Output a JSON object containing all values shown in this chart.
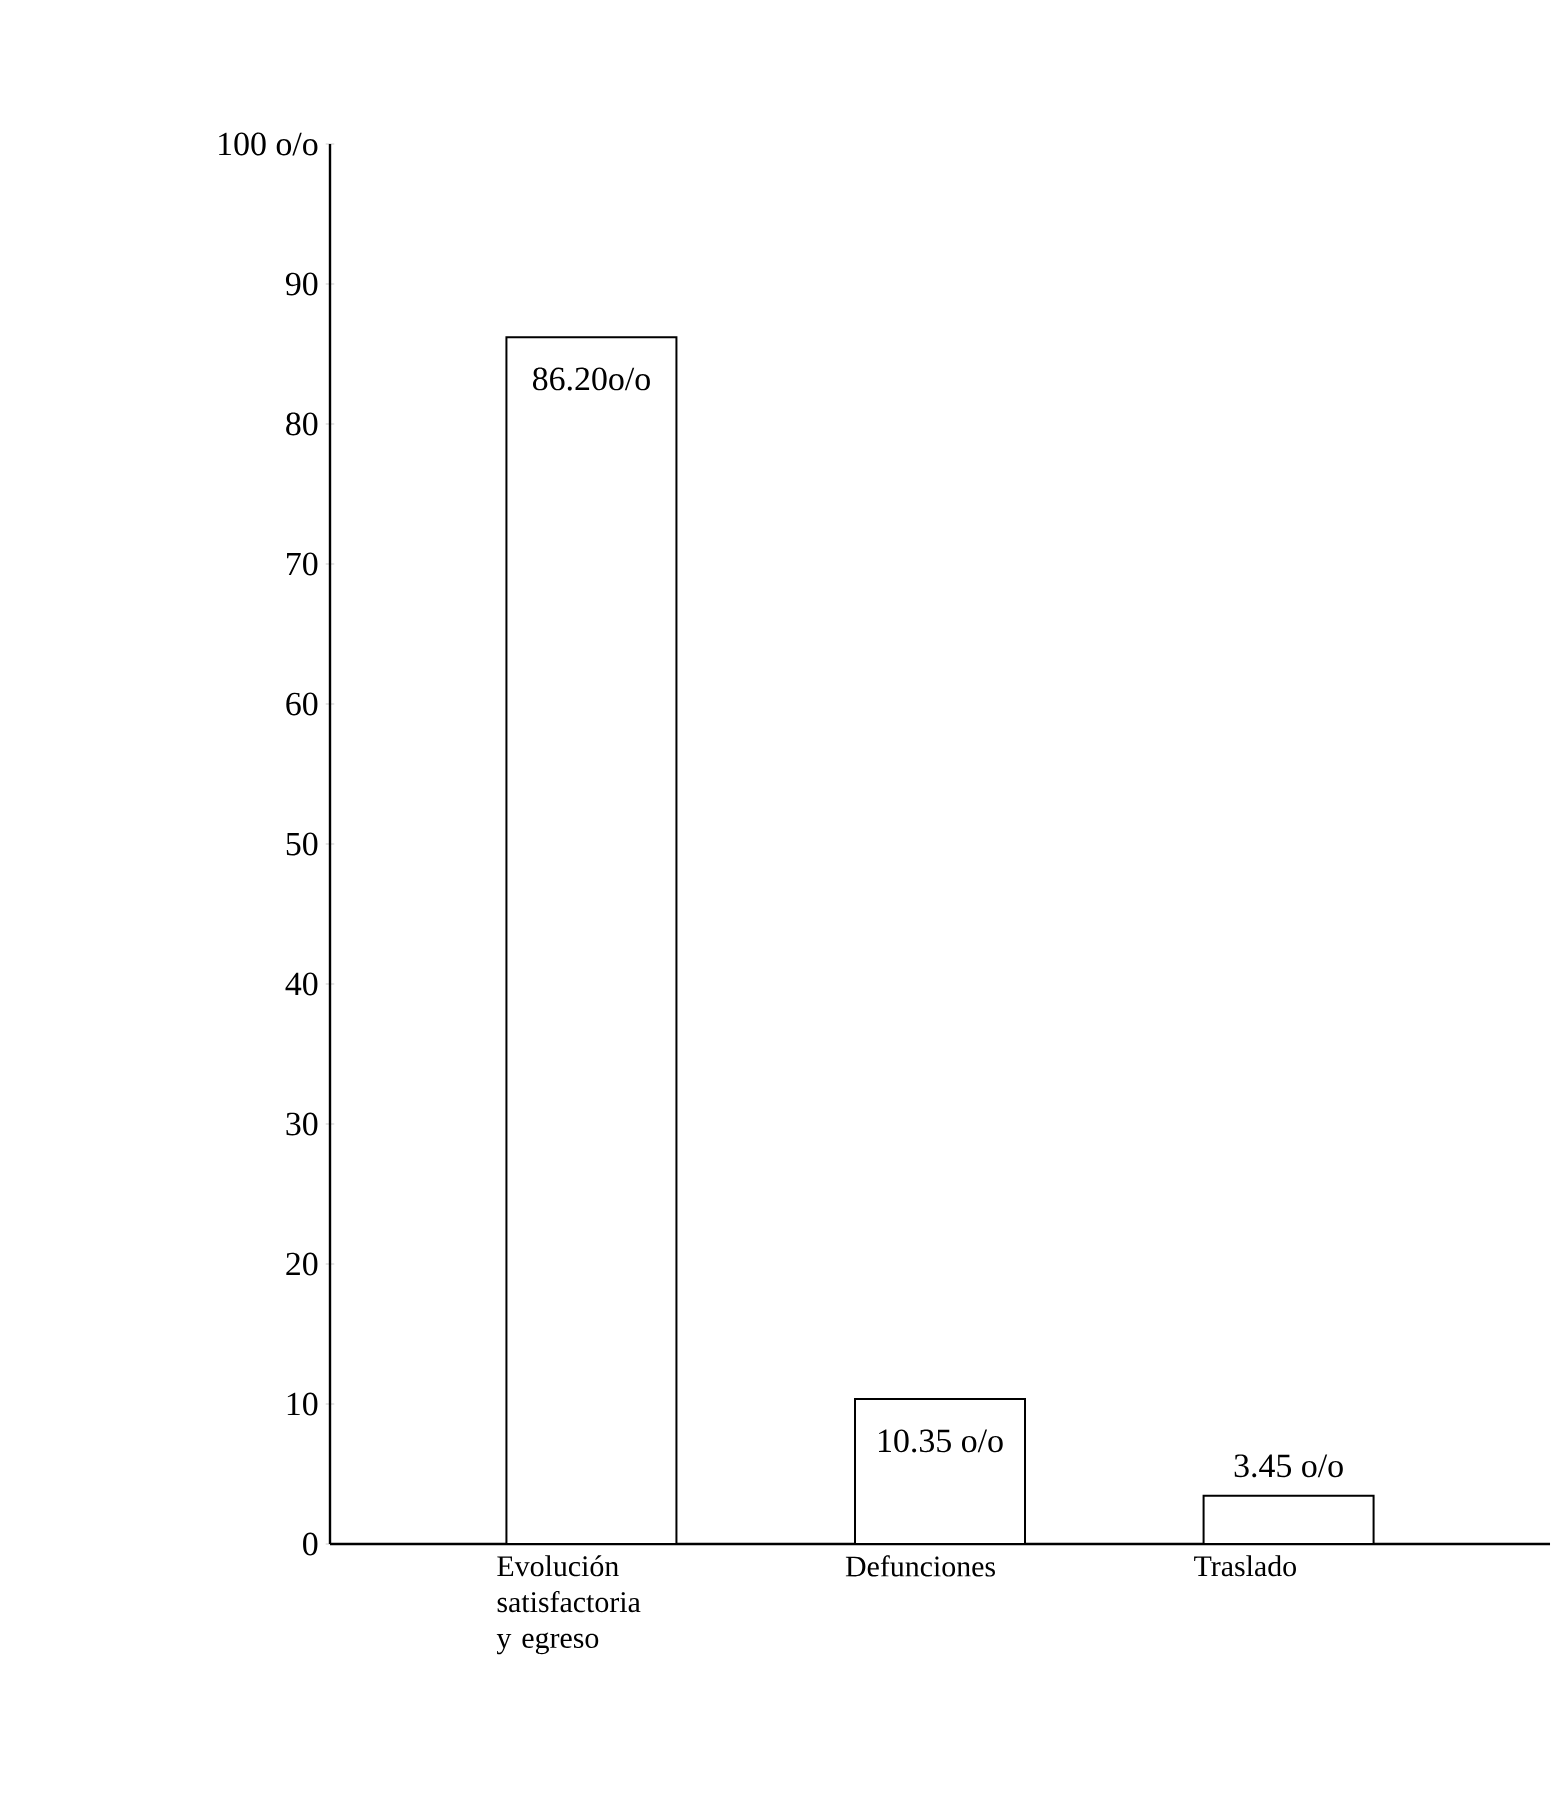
{
  "chart_data": {
    "type": "bar",
    "categories": [
      "Evolución satisfactoria y egreso",
      "Defunciones",
      "Traslado"
    ],
    "values": [
      86.2,
      10.35,
      3.45
    ],
    "value_labels": [
      "86.20o/o",
      "10.35 o/o",
      "3.45 o/o"
    ],
    "color": "#ffffff",
    "ylim": [
      0,
      100
    ],
    "yticks": [
      0,
      10,
      20,
      30,
      40,
      50,
      60,
      70,
      80,
      90,
      {
        "value": 100,
        "label": "100 o/o"
      }
    ],
    "grid": false
  }
}
